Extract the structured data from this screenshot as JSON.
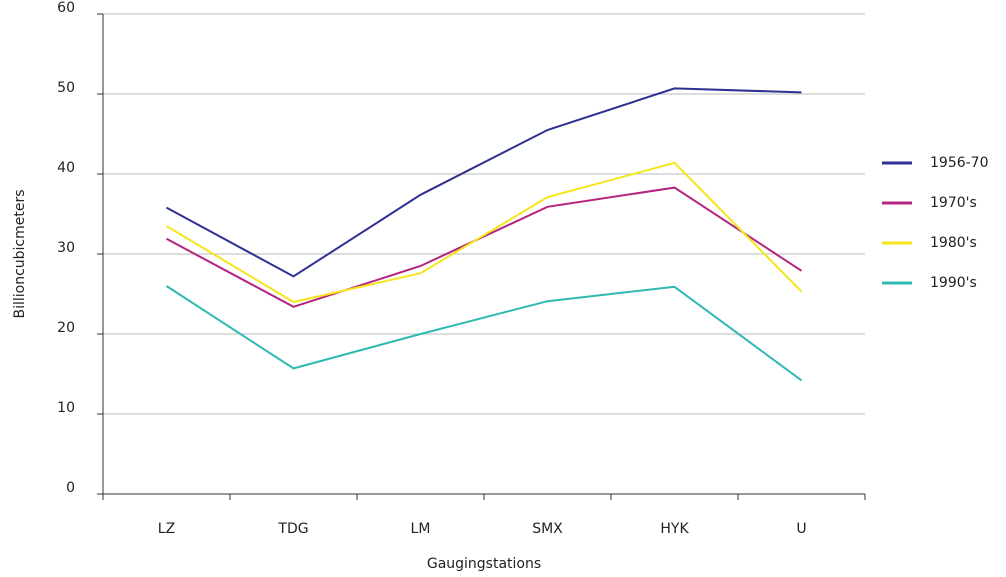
{
  "chart_data": {
    "type": "line",
    "x_label": "Gaugingstations",
    "y_label": "Billioncubicmeters",
    "categories": [
      "LZ",
      "TDG",
      "LM",
      "SMX",
      "HYK",
      "U"
    ],
    "series": [
      {
        "name": "1956-70",
        "color": "#2e3192",
        "values": [
          35.8,
          27.2,
          37.4,
          45.5,
          50.7,
          50.2
        ]
      },
      {
        "name": "1970's",
        "color": "#b5237f",
        "values": [
          31.9,
          23.4,
          28.5,
          35.9,
          38.3,
          27.9
        ]
      },
      {
        "name": "1980's",
        "color": "#f5e61b",
        "values": [
          33.5,
          24.0,
          27.6,
          37.1,
          41.4,
          25.3
        ]
      },
      {
        "name": "1990's",
        "color": "#2fb9b0",
        "values": [
          26.0,
          15.7,
          20.0,
          24.1,
          25.9,
          14.2
        ]
      }
    ],
    "ylim": [
      0,
      60
    ],
    "yticks": [
      0,
      10,
      20,
      30,
      40,
      50,
      60
    ],
    "grid": true,
    "legend": "right"
  }
}
